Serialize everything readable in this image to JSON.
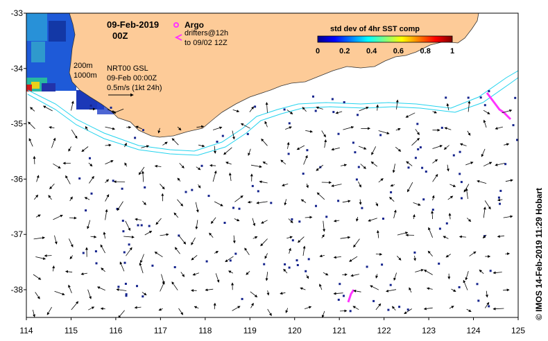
{
  "header": {
    "date": "09-Feb-2019",
    "time": "00Z"
  },
  "legend": {
    "argo_label": "Argo",
    "drifters_label_1": "drifters@12h",
    "drifters_label_2": "to 09/02 12Z",
    "argo_color": "#ff33ff",
    "drifter_color": "#ff33ff"
  },
  "colorbar": {
    "title": "std dev of 4hr SST comp",
    "ticks": [
      "0",
      "0.2",
      "0.4",
      "0.6",
      "0.8",
      "1"
    ],
    "min": 0,
    "max": 1,
    "colormap": "jet"
  },
  "contours": {
    "label_200": "200m",
    "label_1000": "1000m",
    "color": "#22d3ee"
  },
  "current_info": {
    "line1": "NRT00 GSL",
    "line2": "09-Feb 00:00Z",
    "line3": "0.5m/s (1kt 24h)"
  },
  "axes": {
    "x_ticks": [
      "114",
      "115",
      "116",
      "117",
      "118",
      "119",
      "120",
      "121",
      "122",
      "123",
      "124",
      "125"
    ],
    "y_ticks": [
      "-33",
      "-34",
      "-35",
      "-36",
      "-37",
      "-38"
    ],
    "lon_range": [
      114,
      125
    ],
    "lat_range": [
      -38.5,
      -33
    ]
  },
  "credit": "© IMOS 14-Feb-2019 11:29 Hobart",
  "colors": {
    "land": "#fdcb98",
    "ocean": "#ffffff",
    "sst_low": "#08306b"
  }
}
